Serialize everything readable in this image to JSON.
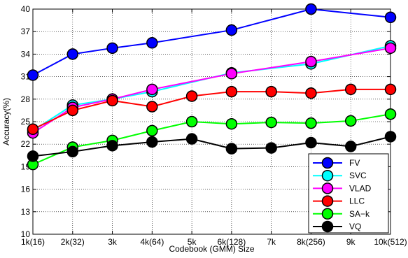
{
  "chart_data": {
    "type": "line",
    "title": "",
    "xlabel": "Codebook (GMM) Size",
    "ylabel": "Accuracy(%)",
    "categories": [
      "1k(16)",
      "2k(32)",
      "3k",
      "4k(64)",
      "5k",
      "6k(128)",
      "7k",
      "8k(256)",
      "9k",
      "10k(512)"
    ],
    "ylim": [
      10,
      40
    ],
    "yticks": [
      10,
      13,
      16,
      19,
      22,
      25,
      28,
      31,
      34,
      37,
      40
    ],
    "grid": true,
    "legend_position": "bottom-right",
    "series": [
      {
        "name": "FV",
        "color": "#0000ff",
        "marker": "#0000ff",
        "values": [
          31.2,
          34.0,
          34.8,
          35.5,
          null,
          37.2,
          null,
          40.0,
          null,
          38.9
        ]
      },
      {
        "name": "SVC",
        "color": "#00ffff",
        "marker": "#00ffff",
        "values": [
          23.8,
          27.2,
          28.0,
          29.0,
          null,
          31.5,
          null,
          32.7,
          null,
          35.1
        ]
      },
      {
        "name": "VLAD",
        "color": "#ff00ff",
        "marker": "#ff00ff",
        "values": [
          23.5,
          26.9,
          28.0,
          29.3,
          null,
          31.4,
          null,
          33.0,
          null,
          34.8
        ]
      },
      {
        "name": "LLC",
        "color": "#ff0000",
        "marker": "#ff0000",
        "values": [
          24.0,
          26.5,
          27.8,
          27.0,
          28.4,
          29.0,
          29.0,
          28.8,
          29.3,
          29.3
        ]
      },
      {
        "name": "SA−k",
        "color": "#00ff00",
        "marker": "#00ff00",
        "values": [
          19.3,
          21.6,
          22.5,
          23.8,
          25.0,
          24.7,
          24.9,
          24.8,
          25.1,
          26.0
        ]
      },
      {
        "name": "VQ",
        "color": "#000000",
        "marker": "#000000",
        "values": [
          20.4,
          21.0,
          21.8,
          22.3,
          22.7,
          21.4,
          21.5,
          22.2,
          21.7,
          23.0
        ]
      }
    ]
  }
}
